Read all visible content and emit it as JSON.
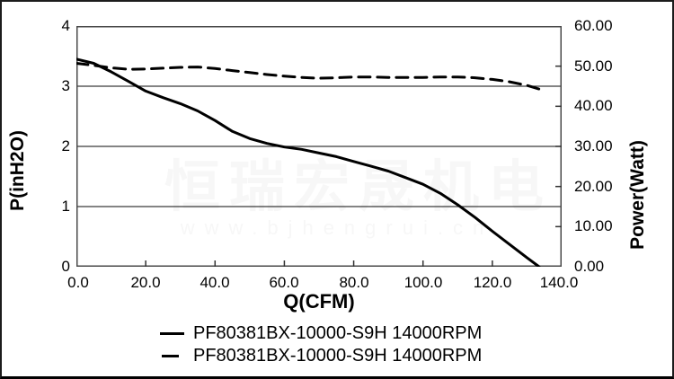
{
  "watermark": {
    "title": "恒瑞宏晟机电",
    "url": "www.bjhengrui.cn"
  },
  "chart_data": {
    "type": "line",
    "title": "",
    "grid": "horizontal-on",
    "legend_position": "bottom",
    "x_axis": {
      "label": "Q(CFM)",
      "min": 0,
      "max": 140,
      "tick_labels": [
        "0.0",
        "20.0",
        "40.0",
        "60.0",
        "80.0",
        "100.0",
        "120.0",
        "140.0"
      ],
      "inner_tick_values": [
        20,
        40,
        60,
        80,
        100,
        120
      ]
    },
    "y_left_axis": {
      "label": "P(inH2O)",
      "min": 0,
      "max": 4,
      "tick_labels": [
        "4",
        "3",
        "2",
        "1",
        "0"
      ],
      "gridline_values": [
        3,
        2,
        1
      ]
    },
    "y_right_axis": {
      "label": "Power(Watt)",
      "min": 0,
      "max": 60,
      "tick_labels": [
        "60.00",
        "50.00",
        "40.00",
        "30.00",
        "20.00",
        "10.00",
        "0.00"
      ],
      "inner_tick_values": [
        50,
        40,
        30,
        20,
        10
      ]
    },
    "series": [
      {
        "name": "PF80381BX-10000-S9H 14000RPM",
        "line_style": "solid",
        "axis": "left",
        "points": [
          [
            0,
            3.45
          ],
          [
            5,
            3.38
          ],
          [
            10,
            3.24
          ],
          [
            15,
            3.08
          ],
          [
            20,
            2.92
          ],
          [
            25,
            2.81
          ],
          [
            30,
            2.71
          ],
          [
            35,
            2.59
          ],
          [
            40,
            2.43
          ],
          [
            45,
            2.25
          ],
          [
            50,
            2.13
          ],
          [
            55,
            2.05
          ],
          [
            60,
            1.99
          ],
          [
            65,
            1.95
          ],
          [
            70,
            1.89
          ],
          [
            75,
            1.83
          ],
          [
            80,
            1.75
          ],
          [
            85,
            1.67
          ],
          [
            90,
            1.59
          ],
          [
            95,
            1.48
          ],
          [
            100,
            1.37
          ],
          [
            105,
            1.22
          ],
          [
            110,
            1.03
          ],
          [
            115,
            0.82
          ],
          [
            120,
            0.59
          ],
          [
            125,
            0.37
          ],
          [
            130,
            0.15
          ],
          [
            133.5,
            0
          ]
        ]
      },
      {
        "name": "PF80381BX-10000-S9H 14000RPM",
        "line_style": "dashed",
        "axis": "right",
        "points": [
          [
            0,
            50.7
          ],
          [
            5,
            50.2
          ],
          [
            10,
            49.6
          ],
          [
            15,
            49.2
          ],
          [
            20,
            49.3
          ],
          [
            25,
            49.5
          ],
          [
            30,
            49.7
          ],
          [
            35,
            49.8
          ],
          [
            40,
            49.4
          ],
          [
            45,
            48.9
          ],
          [
            50,
            48.4
          ],
          [
            55,
            47.9
          ],
          [
            60,
            47.5
          ],
          [
            65,
            47.2
          ],
          [
            70,
            47.0
          ],
          [
            75,
            47.1
          ],
          [
            80,
            47.3
          ],
          [
            85,
            47.3
          ],
          [
            90,
            47.2
          ],
          [
            95,
            47.2
          ],
          [
            100,
            47.2
          ],
          [
            105,
            47.3
          ],
          [
            110,
            47.3
          ],
          [
            115,
            47.1
          ],
          [
            120,
            46.7
          ],
          [
            125,
            46.1
          ],
          [
            130,
            45.2
          ],
          [
            133.5,
            44.3
          ]
        ]
      }
    ],
    "colors": {
      "line": "#000000",
      "grid": "#3a3a3a",
      "frame": "#4a4a4a",
      "tick": "#333333",
      "watermark": "#f7f7f7"
    }
  }
}
